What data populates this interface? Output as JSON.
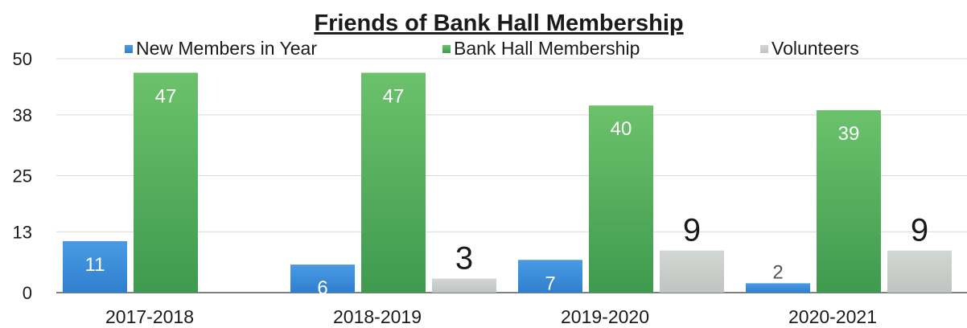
{
  "chart_data": {
    "type": "bar",
    "title": "Friends of Bank Hall Membership",
    "categories": [
      "2017-2018",
      "2018-2019",
      "2019-2020",
      "2020-2021"
    ],
    "series": [
      {
        "name": "New Members in Year",
        "values": [
          11,
          6,
          7,
          2
        ],
        "color": "#3d8fdb"
      },
      {
        "name": "Bank Hall Membership",
        "values": [
          47,
          47,
          40,
          39
        ],
        "color": "#5cb85c"
      },
      {
        "name": "Volunteers",
        "values": [
          null,
          3,
          9,
          9
        ],
        "color": "#c8cdc9"
      }
    ],
    "data_labels": [
      [
        "11",
        "47",
        ""
      ],
      [
        "6",
        "47",
        "3"
      ],
      [
        "7",
        "40",
        "9"
      ],
      [
        "2",
        "39",
        "9"
      ]
    ],
    "y_ticks": [
      "0",
      "13",
      "25",
      "38",
      "50"
    ],
    "ylim": [
      0,
      50
    ],
    "grid": true,
    "legend_position": "top"
  }
}
